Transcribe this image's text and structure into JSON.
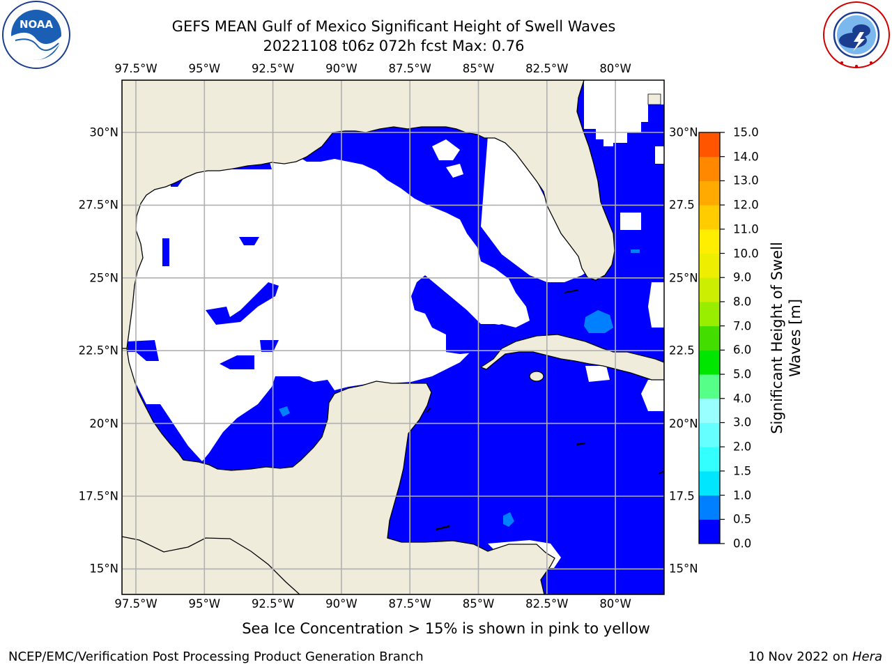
{
  "header": {
    "title_line1": "GEFS MEAN Gulf of Mexico Significant Height of Swell Waves",
    "title_line2": "20221108 t06z 072h fcst   Max: 0.76"
  },
  "logos": {
    "noaa_left": {
      "text": "NOAA",
      "ring_text": "NATIONAL OCEANIC AND ATMOSPHERIC ADMINISTRATION · U.S. DEPARTMENT OF COMMERCE"
    },
    "nws_right": {
      "ring_text": "NATIONAL WEATHER SERVICE"
    }
  },
  "map": {
    "lon_labels": [
      "97.5°W",
      "95°W",
      "92.5°W",
      "90°W",
      "87.5°W",
      "85°W",
      "82.5°W",
      "80°W"
    ],
    "lat_labels_left": [
      "30°N",
      "27.5°N",
      "25°N",
      "22.5°N",
      "20°N",
      "17.5°N",
      "15°N"
    ],
    "lat_labels_right": [
      "30°N",
      "27.5",
      "25°N",
      "22.5",
      "20°N",
      "17.5",
      "15°N"
    ],
    "colors": {
      "land": "#efecdc",
      "no_data": "#ffffff",
      "grid": "#b0b0b0",
      "coast": "#000000"
    }
  },
  "colorbar": {
    "title_line1": "Significant Height of Swell",
    "title_line2": "Waves [m]",
    "ticks": [
      "0.0",
      "0.5",
      "1.0",
      "1.5",
      "2.0",
      "3.0",
      "4.0",
      "5.0",
      "6.0",
      "7.0",
      "8.0",
      "9.0",
      "10.0",
      "11.0",
      "12.0",
      "13.0",
      "14.0",
      "15.0"
    ],
    "colors": [
      "#0000ff",
      "#0080ff",
      "#00e6ff",
      "#33ffff",
      "#66ffff",
      "#99ffff",
      "#55ff88",
      "#00e600",
      "#44dd00",
      "#99ee00",
      "#ccee00",
      "#eeee00",
      "#ffee00",
      "#ffcc00",
      "#ffaa00",
      "#ff8800",
      "#ff5500",
      "#ff2200",
      "#ff0000"
    ]
  },
  "footnote": "Sea Ice Concentration > 15% is shown in pink to yellow",
  "credits": {
    "left": "NCEP/EMC/Verification Post Processing Product Generation Branch",
    "right_date": "10 Nov 2022 on ",
    "right_host": "Hera"
  }
}
